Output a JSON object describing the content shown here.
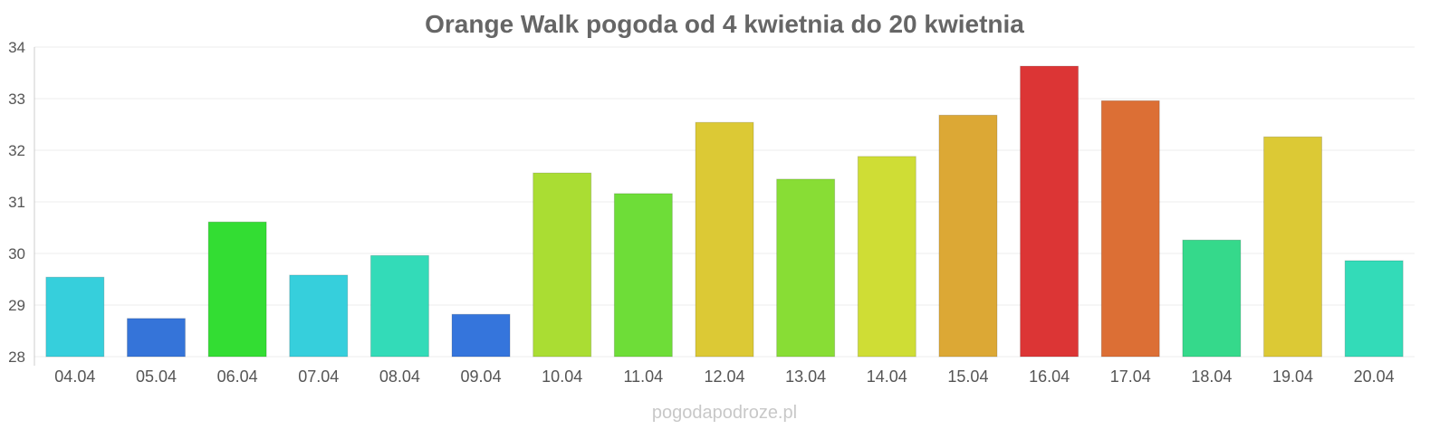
{
  "chart_data": {
    "type": "bar",
    "title": "Orange Walk pogoda od 4 kwietnia do 20 kwietnia",
    "xlabel": "",
    "ylabel": "",
    "ylim": [
      28,
      34
    ],
    "yticks": [
      28,
      29,
      30,
      31,
      32,
      33,
      34
    ],
    "grid": true,
    "categories": [
      "04.04",
      "05.04",
      "06.04",
      "07.04",
      "08.04",
      "09.04",
      "10.04",
      "11.04",
      "12.04",
      "13.04",
      "14.04",
      "15.04",
      "16.04",
      "17.04",
      "18.04",
      "19.04",
      "20.04"
    ],
    "values": [
      29.54,
      28.74,
      30.61,
      29.58,
      29.96,
      28.82,
      31.56,
      31.16,
      32.54,
      31.44,
      31.88,
      32.68,
      33.63,
      32.96,
      30.26,
      32.26,
      29.86
    ],
    "colors": [
      "#36cfdc",
      "#3574d9",
      "#33dd33",
      "#36cfdc",
      "#33dbb8",
      "#3575dc",
      "#aadd33",
      "#6edd38",
      "#dcc935",
      "#88dd35",
      "#cfdd35",
      "#dca835",
      "#dc3535",
      "#dc6f35",
      "#35d98b",
      "#dcc935",
      "#33dbb8"
    ],
    "watermark": "pogodapodroze.pl"
  }
}
